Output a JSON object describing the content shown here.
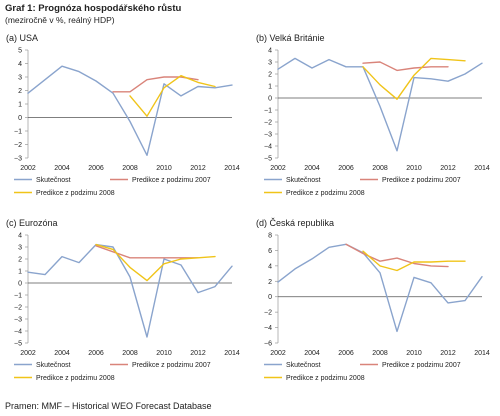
{
  "header": {
    "title": "Graf 1: Prognóza hospodářského růstu",
    "subtitle": "(meziročně v %, reálný HDP)"
  },
  "source": "Pramen: MMF – Historical WEO Forecast Database",
  "colors": {
    "actual": "#8aa4cd",
    "forecast_2007": "#d9847a",
    "forecast_2008": "#f0c419",
    "zero_line": "#555555",
    "axis_text": "#222222"
  },
  "chart_data": [
    {
      "type": "line",
      "title": "(a) USA",
      "xlim": [
        2002,
        2014
      ],
      "ylim": [
        -3,
        5
      ],
      "x_ticks": [
        2002,
        2004,
        2006,
        2008,
        2010,
        2012,
        2014
      ],
      "x_tick_labels": [
        "2002",
        "2004",
        "2006",
        "2008",
        "2010",
        "2012",
        "2014"
      ],
      "y_ticks": [
        -3,
        -2,
        -1,
        0,
        1,
        2,
        3,
        4,
        5
      ],
      "y_tick_labels": [
        "−3",
        "−2",
        "−1",
        "0",
        "1",
        "2",
        "3",
        "4",
        "5"
      ],
      "legend_position": "bottom",
      "series": [
        {
          "name": "Skutečnost",
          "color_key": "actual",
          "x": [
            2002,
            2003,
            2004,
            2005,
            2006,
            2007,
            2008,
            2009,
            2010,
            2011,
            2012,
            2013,
            2014
          ],
          "y": [
            1.8,
            2.8,
            3.8,
            3.4,
            2.7,
            1.8,
            -0.3,
            -2.8,
            2.5,
            1.6,
            2.3,
            2.2,
            2.4
          ]
        },
        {
          "name": "Predikce z podzimu 2007",
          "color_key": "forecast_2007",
          "x": [
            2007,
            2008,
            2009,
            2010,
            2011,
            2012
          ],
          "y": [
            1.9,
            1.9,
            2.8,
            3.0,
            3.0,
            2.8
          ]
        },
        {
          "name": "Predikce z podzimu 2008",
          "color_key": "forecast_2008",
          "x": [
            2008,
            2009,
            2010,
            2011,
            2012,
            2013
          ],
          "y": [
            1.6,
            0.1,
            2.2,
            3.1,
            2.6,
            2.3
          ]
        }
      ]
    },
    {
      "type": "line",
      "title": "(b) Velká Británie",
      "xlim": [
        2002,
        2014
      ],
      "ylim": [
        -5,
        4
      ],
      "x_ticks": [
        2002,
        2004,
        2006,
        2008,
        2010,
        2012,
        2014
      ],
      "x_tick_labels": [
        "2002",
        "2004",
        "2006",
        "2008",
        "2010",
        "2012",
        "2014"
      ],
      "y_ticks": [
        -5,
        -4,
        -3,
        -2,
        -1,
        0,
        1,
        2,
        3,
        4
      ],
      "y_tick_labels": [
        "−5",
        "−4",
        "−3",
        "−2",
        "−1",
        "0",
        "1",
        "2",
        "3",
        "4"
      ],
      "legend_position": "bottom",
      "series": [
        {
          "name": "Skutečnost",
          "color_key": "actual",
          "x": [
            2002,
            2003,
            2004,
            2005,
            2006,
            2007,
            2008,
            2009,
            2010,
            2011,
            2012,
            2013,
            2014
          ],
          "y": [
            2.4,
            3.3,
            2.5,
            3.2,
            2.6,
            2.6,
            -0.7,
            -4.4,
            1.7,
            1.6,
            1.4,
            2.0,
            2.9
          ]
        },
        {
          "name": "Predikce z podzimu 2007",
          "color_key": "forecast_2007",
          "x": [
            2007,
            2008,
            2009,
            2010,
            2011,
            2012
          ],
          "y": [
            2.9,
            3.0,
            2.3,
            2.5,
            2.6,
            2.6
          ]
        },
        {
          "name": "Predikce z podzimu 2008",
          "color_key": "forecast_2008",
          "x": [
            2007,
            2008,
            2009,
            2010,
            2011,
            2012,
            2013
          ],
          "y": [
            2.6,
            1.1,
            -0.1,
            1.9,
            3.3,
            3.2,
            3.1
          ]
        }
      ]
    },
    {
      "type": "line",
      "title": "(c) Eurozóna",
      "xlim": [
        2002,
        2014
      ],
      "ylim": [
        -5,
        4
      ],
      "x_ticks": [
        2002,
        2004,
        2006,
        2008,
        2010,
        2012,
        2014
      ],
      "x_tick_labels": [
        "2002",
        "2004",
        "2006",
        "2008",
        "2010",
        "2012",
        "2014"
      ],
      "y_ticks": [
        -5,
        -4,
        -3,
        -2,
        -1,
        0,
        1,
        2,
        3,
        4
      ],
      "y_tick_labels": [
        "−5",
        "−4",
        "−3",
        "−2",
        "−1",
        "0",
        "1",
        "2",
        "3",
        "4"
      ],
      "legend_position": "bottom",
      "series": [
        {
          "name": "Skutečnost",
          "color_key": "actual",
          "x": [
            2002,
            2003,
            2004,
            2005,
            2006,
            2007,
            2008,
            2009,
            2010,
            2011,
            2012,
            2013,
            2014
          ],
          "y": [
            0.9,
            0.7,
            2.2,
            1.7,
            3.2,
            3.0,
            0.5,
            -4.5,
            2.0,
            1.5,
            -0.8,
            -0.3,
            1.4
          ]
        },
        {
          "name": "Predikce z podzimu 2007",
          "color_key": "forecast_2007",
          "x": [
            2006,
            2007,
            2008,
            2009,
            2010,
            2011,
            2012
          ],
          "y": [
            3.1,
            2.6,
            2.1,
            2.1,
            2.1,
            2.1,
            2.1
          ]
        },
        {
          "name": "Predikce z podzimu 2008",
          "color_key": "forecast_2008",
          "x": [
            2006,
            2007,
            2008,
            2009,
            2010,
            2011,
            2012,
            2013
          ],
          "y": [
            3.2,
            2.8,
            1.3,
            0.2,
            1.6,
            2.0,
            2.1,
            2.2
          ]
        }
      ]
    },
    {
      "type": "line",
      "title": "(d) Česká republika",
      "xlim": [
        2002,
        2014
      ],
      "ylim": [
        -6,
        8
      ],
      "x_ticks": [
        2002,
        2004,
        2006,
        2008,
        2010,
        2012,
        2014
      ],
      "x_tick_labels": [
        "2002",
        "2004",
        "2006",
        "2008",
        "2010",
        "2012",
        "2014"
      ],
      "y_ticks": [
        -6,
        -4,
        -2,
        0,
        2,
        4,
        6,
        8
      ],
      "y_tick_labels": [
        "−6",
        "−4",
        "−2",
        "0",
        "2",
        "4",
        "6",
        "8"
      ],
      "legend_position": "bottom",
      "series": [
        {
          "name": "Skutečnost",
          "color_key": "actual",
          "x": [
            2002,
            2003,
            2004,
            2005,
            2006,
            2007,
            2008,
            2009,
            2010,
            2011,
            2012,
            2013,
            2014
          ],
          "y": [
            1.9,
            3.6,
            4.9,
            6.4,
            6.8,
            5.7,
            3.1,
            -4.5,
            2.5,
            1.8,
            -0.8,
            -0.5,
            2.6
          ]
        },
        {
          "name": "Predikce z podzimu 2007",
          "color_key": "forecast_2007",
          "x": [
            2006,
            2007,
            2008,
            2009,
            2010,
            2011,
            2012
          ],
          "y": [
            6.8,
            5.6,
            4.6,
            5.0,
            4.3,
            4.0,
            3.9
          ]
        },
        {
          "name": "Predikce z podzimu 2008",
          "color_key": "forecast_2008",
          "x": [
            2007,
            2008,
            2009,
            2010,
            2011,
            2012,
            2013
          ],
          "y": [
            5.9,
            4.0,
            3.4,
            4.5,
            4.5,
            4.6,
            4.6
          ]
        }
      ]
    }
  ]
}
